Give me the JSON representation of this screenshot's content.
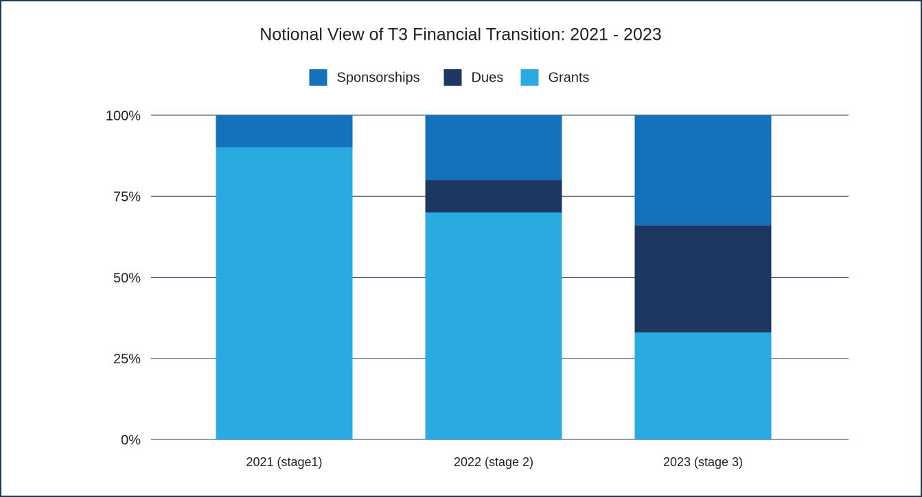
{
  "chart_data": {
    "type": "stacked_bar",
    "title": "Notional View of T3 Financial Transition: 2021 - 2023",
    "categories": [
      "2021 (stage1)",
      "2022 (stage 2)",
      "2023 (stage 3)"
    ],
    "series": [
      {
        "name": "Sponsorships",
        "color": "#1471bc",
        "values": [
          10,
          20,
          34
        ]
      },
      {
        "name": "Dues",
        "color": "#1c3762",
        "values": [
          0,
          10,
          33
        ]
      },
      {
        "name": "Grants",
        "color": "#29abe2",
        "values": [
          90,
          70,
          33
        ]
      }
    ],
    "ylim": [
      0,
      100
    ],
    "yticks": [
      {
        "value": 0,
        "label": "0%"
      },
      {
        "value": 25,
        "label": "25%"
      },
      {
        "value": 50,
        "label": "50%"
      },
      {
        "value": 75,
        "label": "75%"
      },
      {
        "value": 100,
        "label": "100%"
      }
    ],
    "grid": true,
    "legend": "top"
  }
}
